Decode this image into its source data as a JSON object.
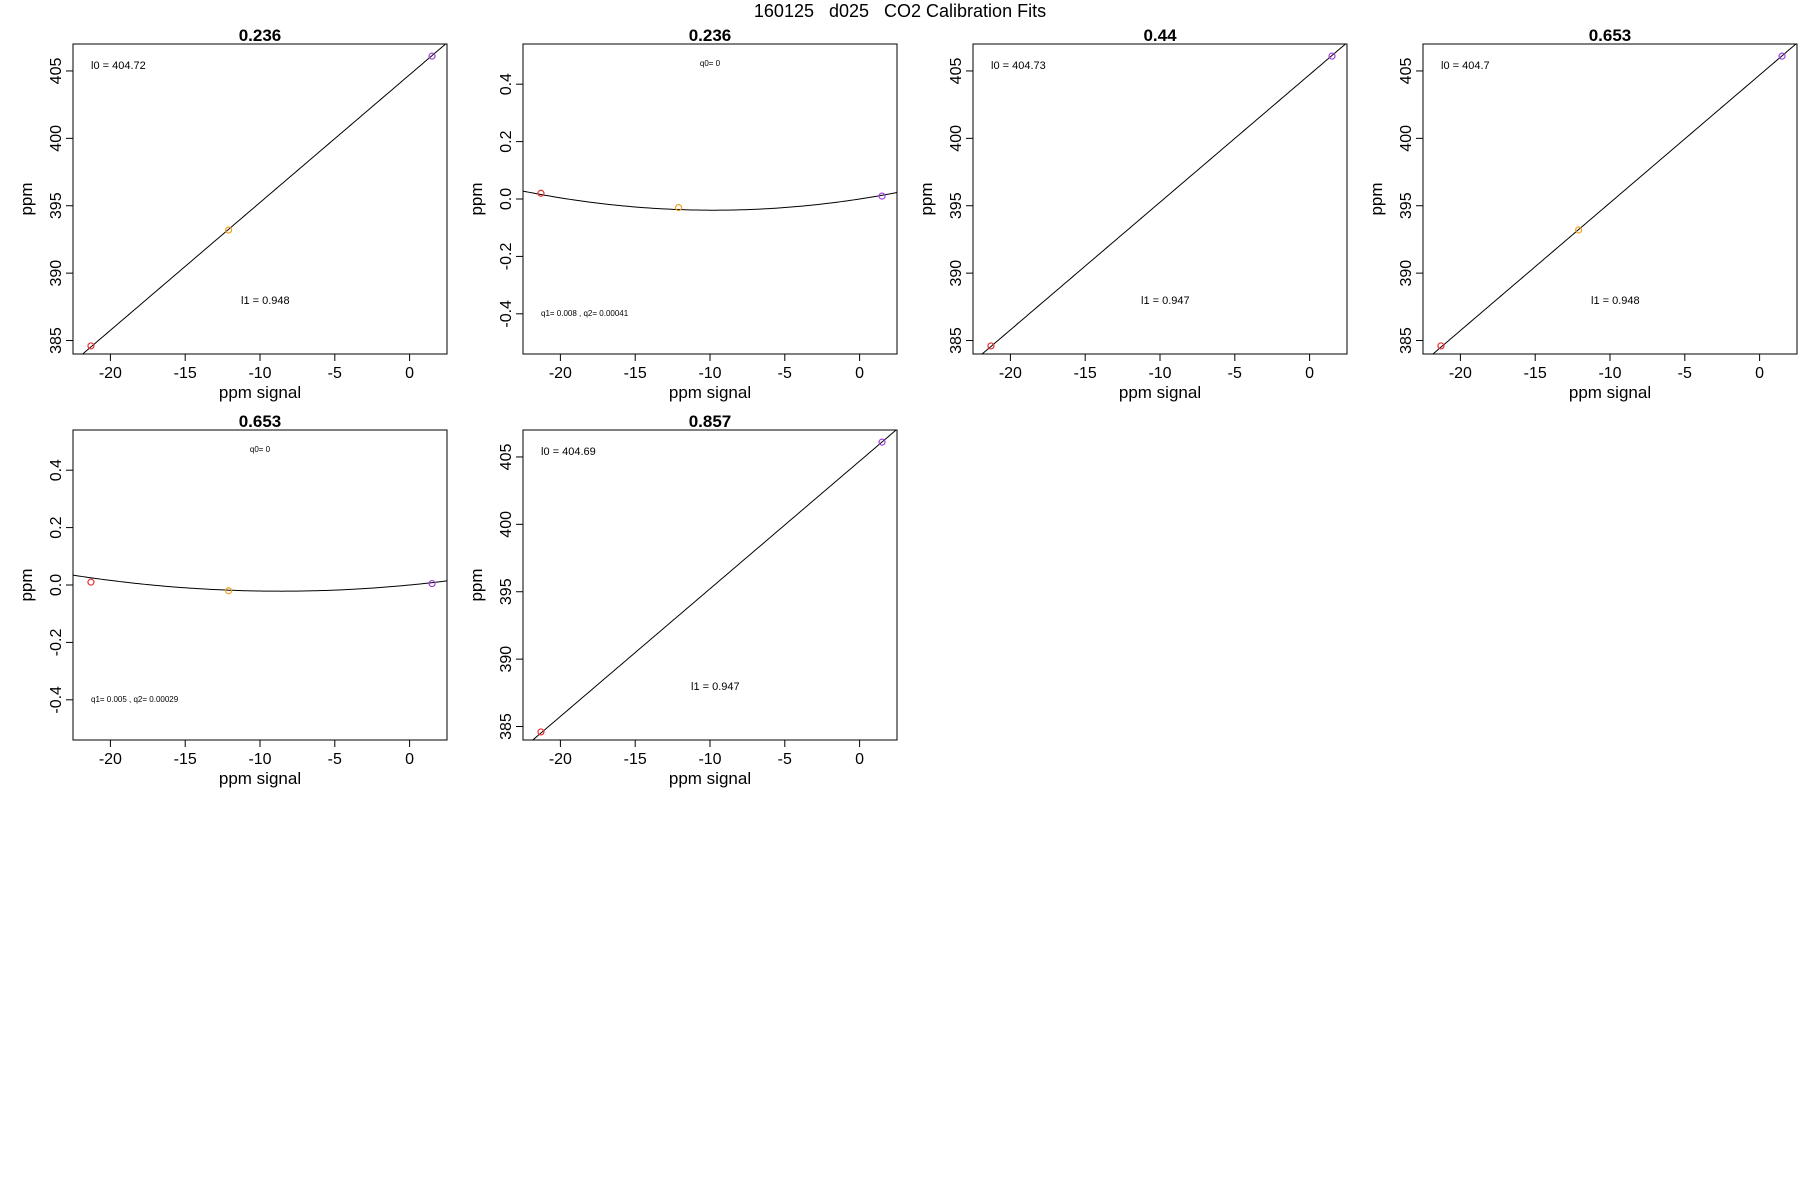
{
  "page_title": "160125   d025   CO2 Calibration Fits",
  "chart_data": [
    {
      "type": "scatter",
      "title": "0.236",
      "xlabel": "ppm signal",
      "ylabel": "ppm",
      "xlim": [
        -22.5,
        2.5
      ],
      "ylim": [
        384,
        407
      ],
      "xticks": [
        "-20",
        "-15",
        "-10",
        "-5",
        "0"
      ],
      "yticks": [
        "385",
        "390",
        "395",
        "400",
        "405"
      ],
      "points": [
        {
          "x": -21.3,
          "y": 384.6,
          "color": "#e53030"
        },
        {
          "x": -12.1,
          "y": 393.2,
          "color": "#f0a020"
        },
        {
          "x": 1.5,
          "y": 406.1,
          "color": "#a040e0"
        }
      ],
      "fit": {
        "kind": "linear",
        "intercept": 404.72,
        "slope": 0.948
      },
      "annotations": [
        "l0 =  404.72",
        "l1 =  0.948"
      ]
    },
    {
      "type": "scatter",
      "title": "0.236",
      "xlabel": "ppm signal",
      "ylabel": "ppm",
      "xlim": [
        -22.5,
        2.5
      ],
      "ylim": [
        -0.54,
        0.54
      ],
      "xticks": [
        "-20",
        "-15",
        "-10",
        "-5",
        "0"
      ],
      "yticks": [
        "-0.4",
        "-0.2",
        "0.0",
        "0.2",
        "0.4"
      ],
      "points": [
        {
          "x": -21.3,
          "y": 0.02,
          "color": "#e53030"
        },
        {
          "x": -12.1,
          "y": -0.03,
          "color": "#f0a020"
        },
        {
          "x": 1.5,
          "y": 0.01,
          "color": "#a040e0"
        }
      ],
      "fit": {
        "kind": "quadratic",
        "q0": 0,
        "q1": 0.008,
        "q2": 0.00041
      },
      "annotations": [
        "q0= 0",
        "q1= 0.008 , q2= 0.00041"
      ]
    },
    {
      "type": "scatter",
      "title": "0.44",
      "xlabel": "ppm signal",
      "ylabel": "ppm",
      "xlim": [
        -22.5,
        2.5
      ],
      "ylim": [
        384,
        407
      ],
      "xticks": [
        "-20",
        "-15",
        "-10",
        "-5",
        "0"
      ],
      "yticks": [
        "385",
        "390",
        "395",
        "400",
        "405"
      ],
      "points": [
        {
          "x": -21.3,
          "y": 384.6,
          "color": "#e53030"
        },
        {
          "x": 1.5,
          "y": 406.1,
          "color": "#a040e0"
        }
      ],
      "fit": {
        "kind": "linear",
        "intercept": 404.73,
        "slope": 0.947
      },
      "annotations": [
        "l0 =  404.73",
        "l1 =  0.947"
      ]
    },
    {
      "type": "scatter",
      "title": "0.653",
      "xlabel": "ppm signal",
      "ylabel": "ppm",
      "xlim": [
        -22.5,
        2.5
      ],
      "ylim": [
        384,
        407
      ],
      "xticks": [
        "-20",
        "-15",
        "-10",
        "-5",
        "0"
      ],
      "yticks": [
        "385",
        "390",
        "395",
        "400",
        "405"
      ],
      "points": [
        {
          "x": -21.3,
          "y": 384.6,
          "color": "#e53030"
        },
        {
          "x": -12.1,
          "y": 393.2,
          "color": "#f0a020"
        },
        {
          "x": 1.5,
          "y": 406.1,
          "color": "#a040e0"
        }
      ],
      "fit": {
        "kind": "linear",
        "intercept": 404.7,
        "slope": 0.948
      },
      "annotations": [
        "l0 =  404.7",
        "l1 =  0.948"
      ]
    },
    {
      "type": "scatter",
      "title": "0.653",
      "xlabel": "ppm signal",
      "ylabel": "ppm",
      "xlim": [
        -22.5,
        2.5
      ],
      "ylim": [
        -0.54,
        0.54
      ],
      "xticks": [
        "-20",
        "-15",
        "-10",
        "-5",
        "0"
      ],
      "yticks": [
        "-0.4",
        "-0.2",
        "0.0",
        "0.2",
        "0.4"
      ],
      "points": [
        {
          "x": -21.3,
          "y": 0.01,
          "color": "#e53030"
        },
        {
          "x": -12.1,
          "y": -0.02,
          "color": "#f0a020"
        },
        {
          "x": 1.5,
          "y": 0.005,
          "color": "#a040e0"
        }
      ],
      "fit": {
        "kind": "quadratic",
        "q0": 0,
        "q1": 0.005,
        "q2": 0.00029
      },
      "annotations": [
        "q0= 0",
        "q1= 0.005 , q2= 0.00029"
      ]
    },
    {
      "type": "scatter",
      "title": "0.857",
      "xlabel": "ppm signal",
      "ylabel": "ppm",
      "xlim": [
        -22.5,
        2.5
      ],
      "ylim": [
        384,
        407
      ],
      "xticks": [
        "-20",
        "-15",
        "-10",
        "-5",
        "0"
      ],
      "yticks": [
        "385",
        "390",
        "395",
        "400",
        "405"
      ],
      "points": [
        {
          "x": -21.3,
          "y": 384.6,
          "color": "#e53030"
        },
        {
          "x": 1.5,
          "y": 406.1,
          "color": "#a040e0"
        }
      ],
      "fit": {
        "kind": "linear",
        "intercept": 404.69,
        "slope": 0.947
      },
      "annotations": [
        "l0 =  404.69",
        "l1 =  0.947"
      ]
    }
  ]
}
